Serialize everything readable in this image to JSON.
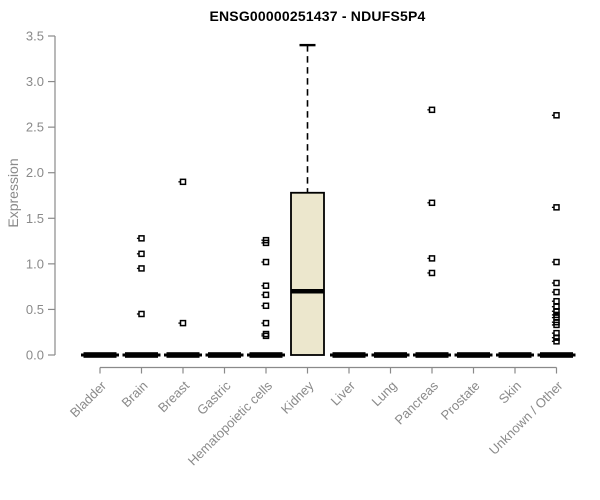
{
  "chart_data": {
    "type": "boxplot",
    "title": "ENSG00000251437 - NDUFS5P4",
    "ylabel": "Expression",
    "xlabel": "",
    "ylim": [
      0,
      3.5
    ],
    "yticks": [
      0.0,
      0.5,
      1.0,
      1.5,
      2.0,
      2.5,
      3.0,
      3.5
    ],
    "grid": false,
    "legend": "none",
    "axis_color": "#8a8a8a",
    "box_fill_color": "#ece7cd",
    "box_line_color": "#000000",
    "categories": [
      "Bladder",
      "Brain",
      "Breast",
      "Gastric",
      "Hematopoietic cells",
      "Kidney",
      "Liver",
      "Lung",
      "Pancreas",
      "Prostate",
      "Skin",
      "Unknown / Other"
    ],
    "series": [
      {
        "category": "Bladder",
        "q1": 0,
        "median": 0,
        "q3": 0,
        "whisker_low": 0,
        "whisker_high": 0,
        "outliers": []
      },
      {
        "category": "Brain",
        "q1": 0,
        "median": 0,
        "q3": 0,
        "whisker_low": 0,
        "whisker_high": 0,
        "outliers": [
          1.28,
          1.11,
          0.95,
          0.45
        ]
      },
      {
        "category": "Breast",
        "q1": 0,
        "median": 0,
        "q3": 0,
        "whisker_low": 0,
        "whisker_high": 0,
        "outliers": [
          1.9,
          0.35
        ]
      },
      {
        "category": "Gastric",
        "q1": 0,
        "median": 0,
        "q3": 0,
        "whisker_low": 0,
        "whisker_high": 0,
        "outliers": []
      },
      {
        "category": "Hematopoietic cells",
        "q1": 0,
        "median": 0,
        "q3": 0,
        "whisker_low": 0,
        "whisker_high": 0,
        "outliers": [
          1.26,
          1.23,
          1.02,
          0.76,
          0.66,
          0.54,
          0.35,
          0.23,
          0.21
        ]
      },
      {
        "category": "Kidney",
        "q1": 0,
        "median": 0.7,
        "q3": 1.78,
        "whisker_low": 0,
        "whisker_high": 3.4,
        "outliers": []
      },
      {
        "category": "Liver",
        "q1": 0,
        "median": 0,
        "q3": 0,
        "whisker_low": 0,
        "whisker_high": 0,
        "outliers": []
      },
      {
        "category": "Lung",
        "q1": 0,
        "median": 0,
        "q3": 0,
        "whisker_low": 0,
        "whisker_high": 0,
        "outliers": []
      },
      {
        "category": "Pancreas",
        "q1": 0,
        "median": 0,
        "q3": 0,
        "whisker_low": 0,
        "whisker_high": 0,
        "outliers": [
          2.69,
          1.67,
          1.06,
          0.9
        ]
      },
      {
        "category": "Prostate",
        "q1": 0,
        "median": 0,
        "q3": 0,
        "whisker_low": 0,
        "whisker_high": 0,
        "outliers": []
      },
      {
        "category": "Skin",
        "q1": 0,
        "median": 0,
        "q3": 0,
        "whisker_low": 0,
        "whisker_high": 0,
        "outliers": []
      },
      {
        "category": "Unknown / Other",
        "q1": 0,
        "median": 0,
        "q3": 0,
        "whisker_low": 0,
        "whisker_high": 0,
        "outliers": [
          2.63,
          1.62,
          1.02,
          0.79,
          0.69,
          0.59,
          0.53,
          0.48,
          0.44,
          0.41,
          0.36,
          0.33,
          0.24,
          0.19,
          0.15
        ]
      }
    ]
  }
}
